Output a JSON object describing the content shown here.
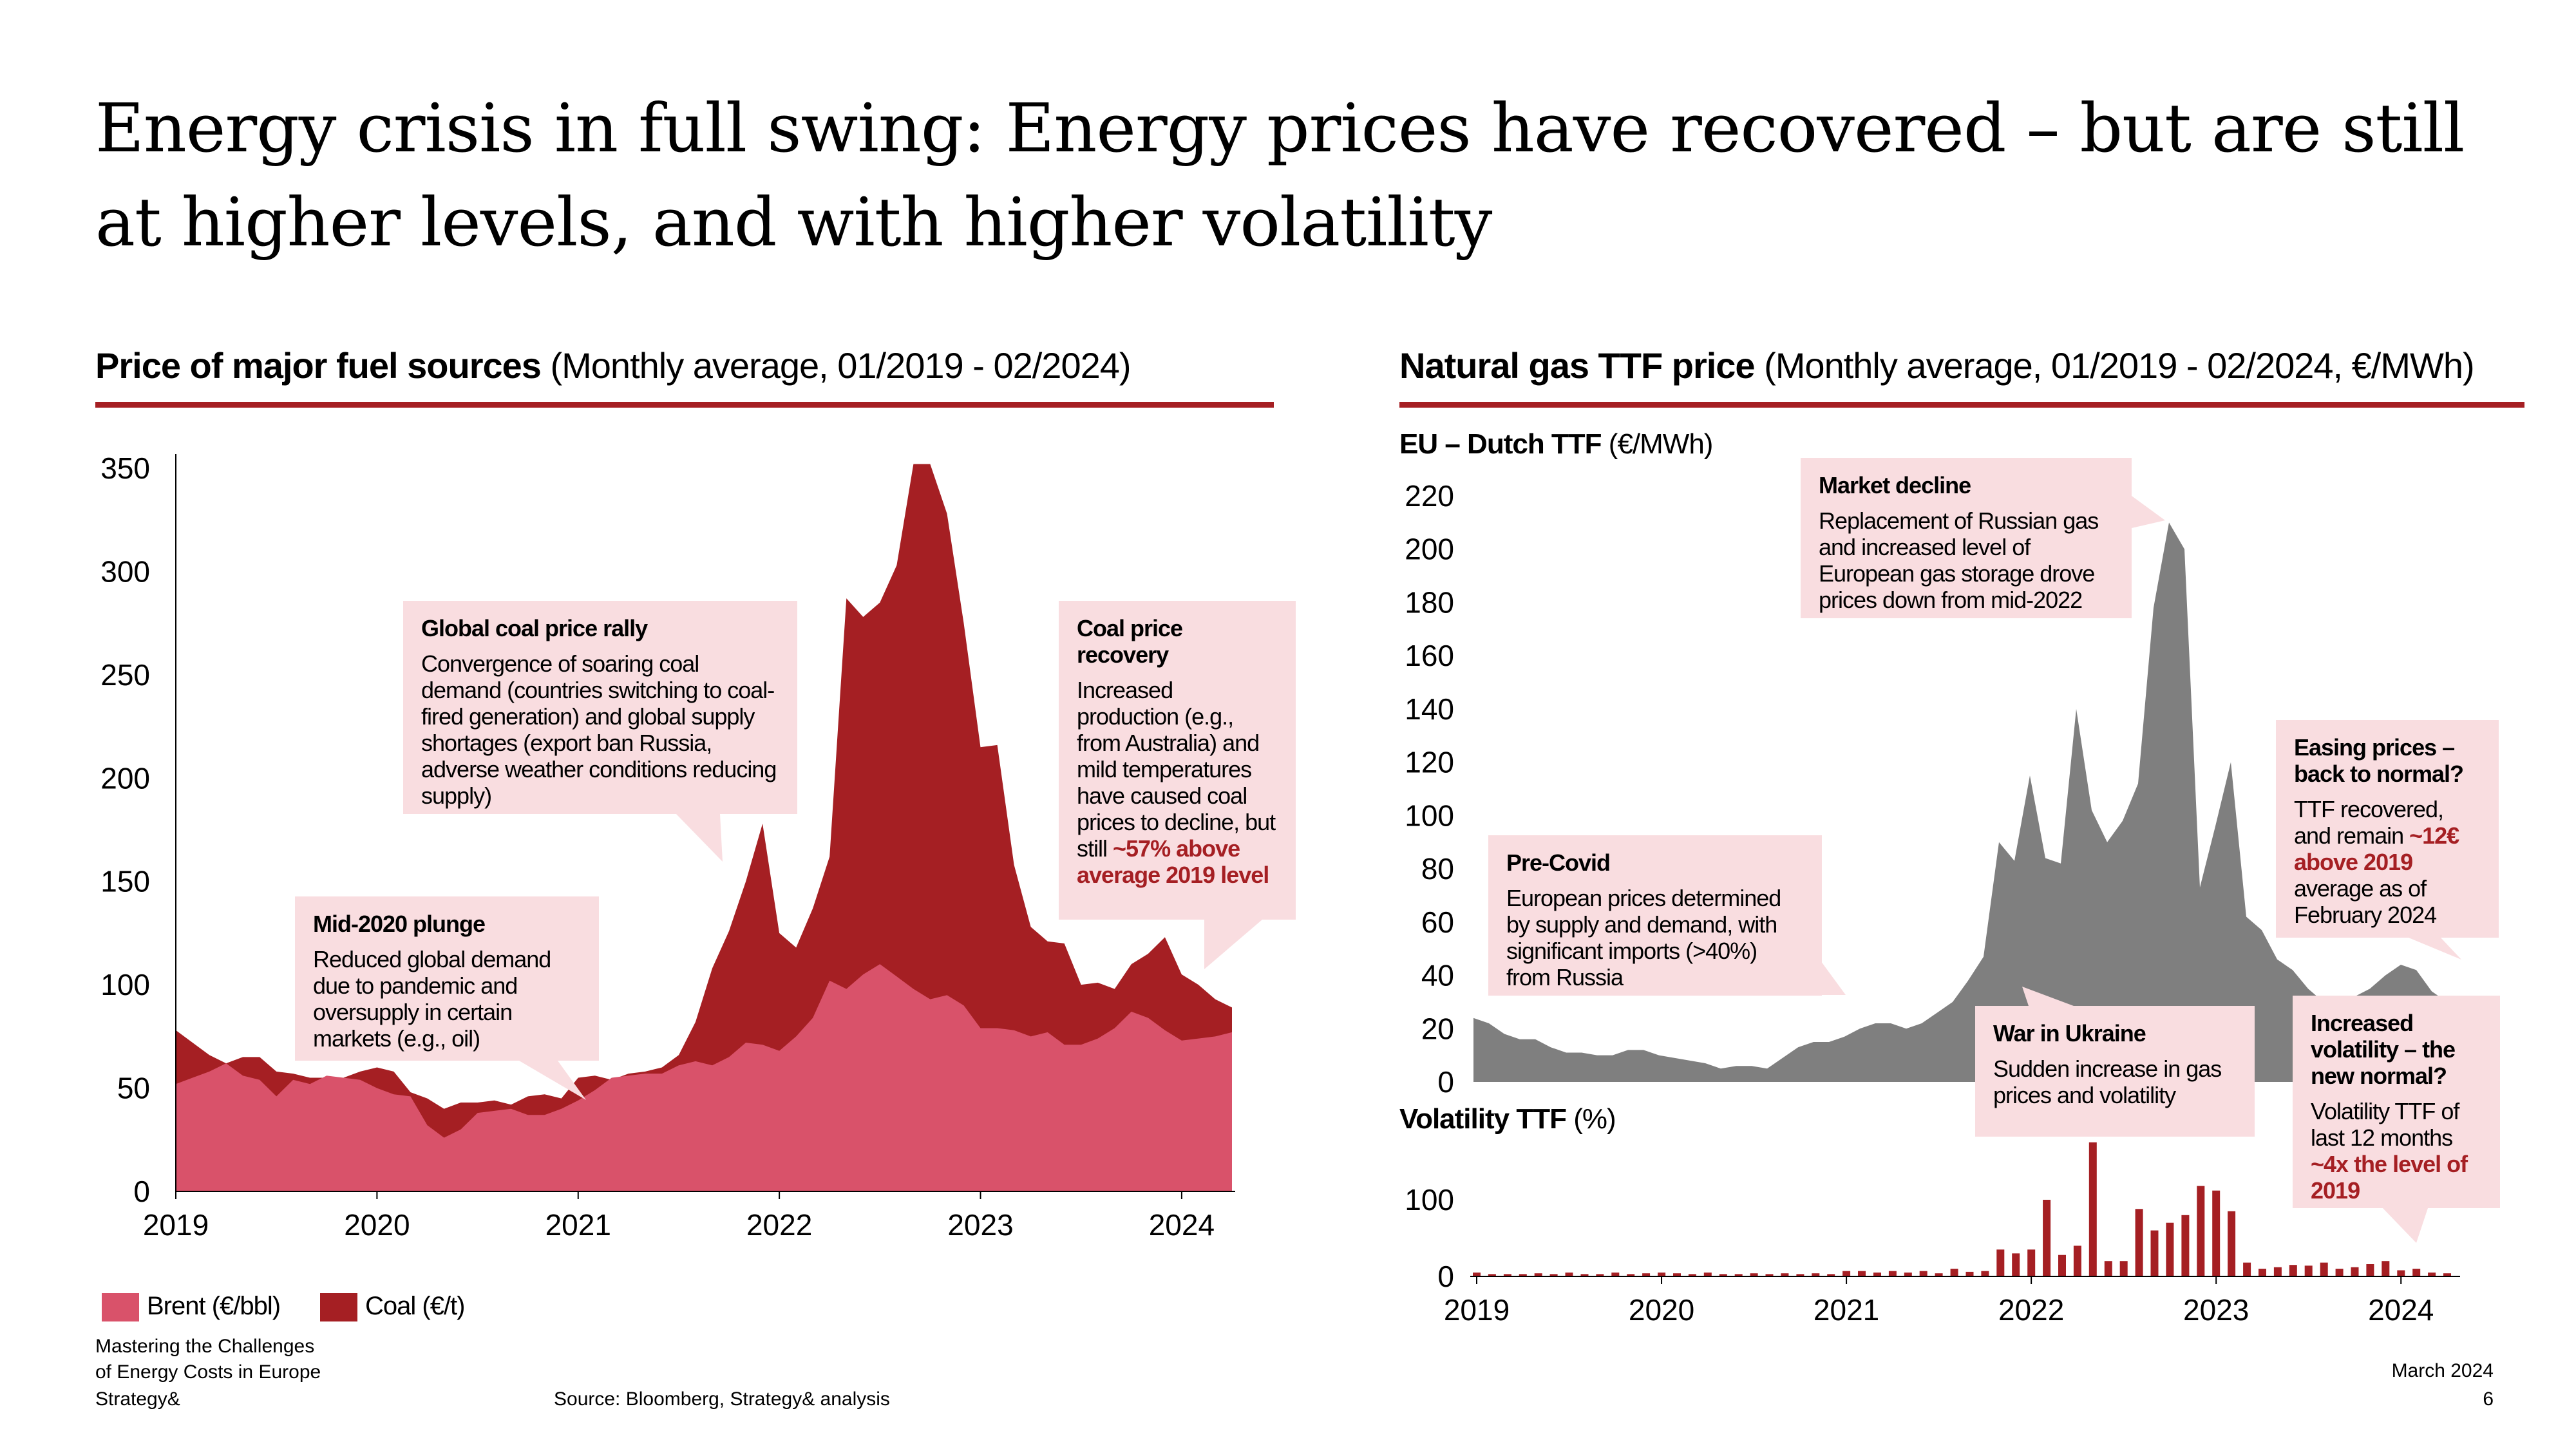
{
  "title": "Energy crisis in full swing: Energy prices have recovered – but are still at higher levels, and with higher volatility",
  "left": {
    "heading_bold": "Price of major fuel sources",
    "heading_rest": " (Monthly  average, 01/2019 - 02/2024)",
    "legend": {
      "brent": "Brent (€/bbl)",
      "coal": "Coal (€/t)"
    },
    "annotations": {
      "plunge": {
        "title": "Mid-2020 plunge",
        "body": "Reduced global demand due to pandemic and oversupply in certain markets (e.g., oil)"
      },
      "rally": {
        "title": "Global  coal price rally",
        "body": "Convergence of soaring coal demand (countries switching to coal-fired generation) and global supply shortages (export ban Russia, adverse weather conditions reducing supply)"
      },
      "recovery": {
        "title": "Coal price recovery",
        "body": "Increased production (e.g., from Australia) and mild temperatures have caused coal prices to decline, but still ",
        "highlight": "~57% above average 2019 level"
      }
    }
  },
  "right": {
    "heading_bold": "Natural gas TTF price",
    "heading_rest": " (Monthly  average, 01/2019 - 02/2024, €/MWh)",
    "ttf_label_bold": "EU – Dutch TTF",
    "ttf_label_rest": " (€/MWh)",
    "vol_label_bold": "Volatility TTF",
    "vol_label_rest": " (%)",
    "annotations": {
      "precovid": {
        "title": "Pre-Covid",
        "body": "European prices determined by supply and demand, with significant imports (>40%) from Russia"
      },
      "decline": {
        "title": "Market decline",
        "body": "Replacement of Russian gas and increased level of European gas storage drove prices down from mid-2022"
      },
      "easing": {
        "title": "Easing prices – back to normal?",
        "body": "TTF recovered, and remain ",
        "highlight": "~12€ above 2019",
        "body_after": " average as of February 2024"
      },
      "ukraine": {
        "title": "War in Ukraine",
        "body": "Sudden increase in gas prices and volatility"
      },
      "volatility": {
        "title": "Increased volatility  – the new normal?",
        "body": "Volatility TTF of last 12 months ",
        "highlight": "~4x the level of 2019"
      }
    }
  },
  "footer": {
    "title_line1": "Mastering the Challenges",
    "title_line2": "of Energy Costs in Europe",
    "brand": "Strategy&",
    "source": "Source: Bloomberg, Strategy& analysis",
    "date": "March 2024",
    "page": "6"
  },
  "colors": {
    "brent": "#d9526a",
    "coal": "#a51f23",
    "ttf": "#7f7f7f",
    "volatility": "#a51f23",
    "annotation_bg": "#f9dde0",
    "accent": "#a51f23"
  },
  "chart_data": [
    {
      "type": "area",
      "title": "Price of major fuel sources",
      "stacked_overlay": true,
      "x_start": "2019-01",
      "x_ticks": [
        "2019",
        "2020",
        "2021",
        "2022",
        "2023",
        "2024"
      ],
      "y_ticks": [
        0,
        50,
        100,
        150,
        200,
        250,
        300,
        350
      ],
      "ylim": [
        0,
        350
      ],
      "series": [
        {
          "name": "Coal (€/t)",
          "values": [
            78,
            72,
            66,
            62,
            65,
            65,
            58,
            57,
            55,
            55,
            55,
            58,
            60,
            58,
            48,
            45,
            40,
            43,
            43,
            44,
            42,
            46,
            47,
            45,
            55,
            56,
            54,
            57,
            58,
            60,
            66,
            82,
            108,
            126,
            150,
            178,
            125,
            118,
            137,
            162,
            287,
            278,
            285,
            303,
            352,
            352,
            328,
            275,
            215,
            216,
            158,
            128,
            121,
            120,
            100,
            101,
            98,
            110,
            115,
            123,
            105,
            100,
            93,
            89
          ],
          "note": "Coal plotted as the top envelope of the stacked view"
        },
        {
          "name": "Brent (€/bbl)",
          "values": [
            52,
            55,
            58,
            62,
            56,
            54,
            46,
            54,
            52,
            56,
            55,
            54,
            50,
            47,
            46,
            32,
            26,
            30,
            38,
            39,
            40,
            37,
            37,
            40,
            44,
            49,
            55,
            56,
            57,
            57,
            61,
            63,
            61,
            65,
            72,
            71,
            68,
            75,
            84,
            102,
            98,
            105,
            110,
            104,
            98,
            93,
            95,
            90,
            79,
            79,
            78,
            75,
            77,
            71,
            71,
            74,
            79,
            87,
            84,
            78,
            73,
            74,
            75,
            77
          ]
        }
      ]
    },
    {
      "type": "area",
      "title": "EU – Dutch TTF (€/MWh)",
      "x_start": "2019-01",
      "x_ticks": [
        "2019",
        "2020",
        "2021",
        "2022",
        "2023",
        "2024"
      ],
      "y_ticks": [
        0,
        20,
        40,
        60,
        80,
        100,
        120,
        140,
        160,
        180,
        200,
        220
      ],
      "ylim": [
        0,
        220
      ],
      "values": [
        24,
        22,
        18,
        16,
        16,
        13,
        11,
        11,
        10,
        10,
        12,
        12,
        10,
        9,
        8,
        7,
        5,
        6,
        6,
        5,
        9,
        13,
        15,
        15,
        17,
        20,
        22,
        22,
        20,
        22,
        26,
        30,
        38,
        47,
        90,
        83,
        115,
        84,
        82,
        140,
        102,
        90,
        98,
        112,
        178,
        210,
        200,
        73,
        96,
        120,
        62,
        57,
        46,
        42,
        35,
        30,
        26,
        32,
        35,
        40,
        44,
        42,
        34,
        30
      ]
    },
    {
      "type": "bar",
      "title": "Volatility TTF (%)",
      "x_start": "2019-01",
      "x_ticks": [
        "2019",
        "2020",
        "2021",
        "2022",
        "2023",
        "2024"
      ],
      "y_ticks": [
        0,
        100
      ],
      "ylim": [
        0,
        190
      ],
      "values": [
        5,
        3,
        3,
        3,
        4,
        3,
        5,
        3,
        3,
        5,
        3,
        4,
        5,
        4,
        3,
        5,
        3,
        3,
        4,
        3,
        4,
        3,
        4,
        3,
        7,
        7,
        5,
        7,
        5,
        7,
        4,
        10,
        6,
        7,
        35,
        30,
        35,
        100,
        28,
        40,
        175,
        20,
        20,
        88,
        60,
        70,
        80,
        118,
        112,
        85,
        18,
        10,
        12,
        15,
        14,
        18,
        10,
        12,
        16,
        20,
        8,
        10,
        5,
        4
      ]
    }
  ]
}
